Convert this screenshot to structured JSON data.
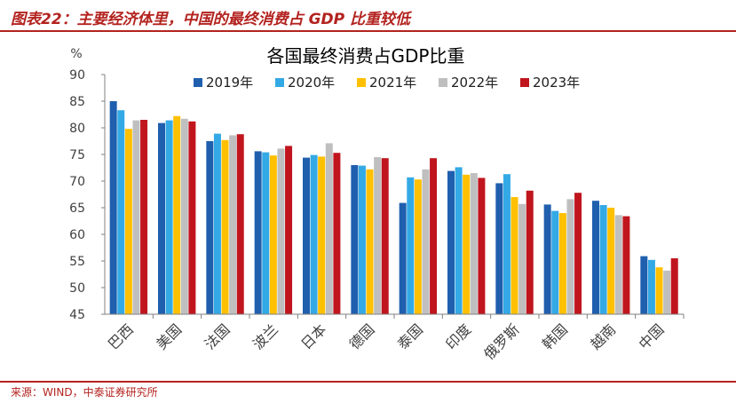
{
  "header": {
    "title": "图表22：主要经济体里，中国的最终消费占 GDP 比重较低"
  },
  "footer": {
    "source": "来源：WIND，中泰证券研究所"
  },
  "colors": {
    "brand": "#b3231f",
    "series": [
      "#1f5fae",
      "#33a9e6",
      "#ffc000",
      "#bfbfbf",
      "#c0151d"
    ]
  },
  "chart_data": {
    "type": "bar",
    "title": "各国最终消费占GDP比重",
    "ylabel": "%",
    "xlabel": "",
    "ylim": [
      45,
      90
    ],
    "yticks": [
      45,
      50,
      55,
      60,
      65,
      70,
      75,
      80,
      85,
      90
    ],
    "grid": false,
    "legend": "top",
    "categories": [
      "巴西",
      "美国",
      "法国",
      "波兰",
      "日本",
      "德国",
      "泰国",
      "印度",
      "俄罗斯",
      "韩国",
      "越南",
      "中国"
    ],
    "series": [
      {
        "name": "2019年",
        "values": [
          85.0,
          80.9,
          77.5,
          75.6,
          74.4,
          73.0,
          65.9,
          71.9,
          69.6,
          65.6,
          66.3,
          55.9
        ]
      },
      {
        "name": "2020年",
        "values": [
          83.3,
          81.4,
          78.9,
          75.4,
          74.9,
          72.9,
          70.7,
          72.6,
          71.3,
          64.4,
          65.5,
          55.2
        ]
      },
      {
        "name": "2021年",
        "values": [
          79.8,
          82.2,
          77.7,
          74.8,
          74.6,
          72.2,
          70.3,
          71.2,
          67.0,
          64.0,
          65.0,
          53.8
        ]
      },
      {
        "name": "2022年",
        "values": [
          81.4,
          81.7,
          78.6,
          76.1,
          77.1,
          74.5,
          72.2,
          71.5,
          65.7,
          66.6,
          63.6,
          53.2
        ]
      },
      {
        "name": "2023年",
        "values": [
          81.5,
          81.2,
          78.8,
          76.6,
          75.3,
          74.3,
          74.3,
          70.6,
          68.2,
          67.8,
          63.4,
          55.5
        ]
      }
    ]
  }
}
